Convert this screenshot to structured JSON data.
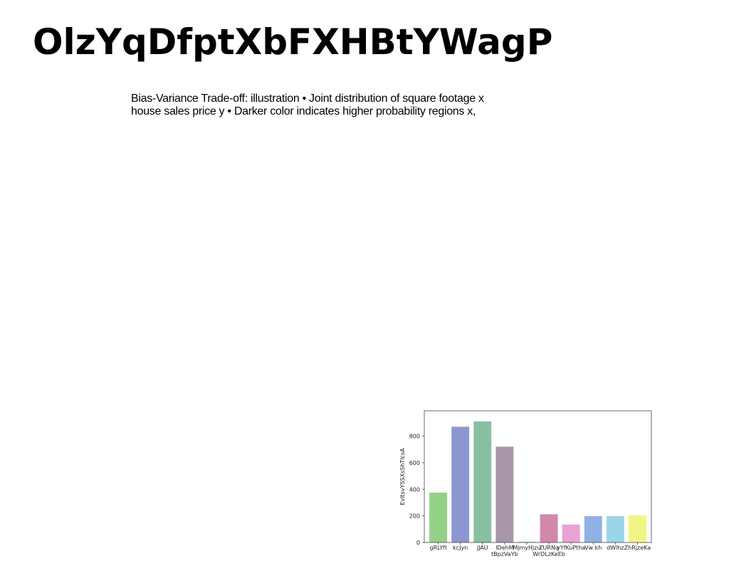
{
  "page": {
    "title": "OlzYqDfptXbFXHBtYWagP",
    "body_lines": [
      "Bias-Variance Trade-off: illustration • Joint distribution of square footage x",
      "house sales price y • Darker color indicates higher probability regions x,"
    ]
  },
  "chart_data": {
    "type": "bar",
    "categories": [
      "gRLYfI",
      "kcJyn",
      "jJAU",
      "lDehM\ntBpzVaYb",
      "MjmyHjzu",
      "ZURNq\nWrDLzKeEb",
      "yYfKuPtha",
      "Vw kh",
      "dWlhz",
      "ZhRjzeKa"
    ],
    "values": [
      375,
      870,
      910,
      720,
      8,
      212,
      135,
      198,
      198,
      203
    ],
    "colors": [
      "#93d187",
      "#8c96d0",
      "#88c0a2",
      "#a896a8",
      "#b8e8b0",
      "#d287ad",
      "#e8a2d6",
      "#8fb1e6",
      "#9ad6ea",
      "#f0f584"
    ],
    "ylabel": "EvltsvYSSXsShTlcsA",
    "xlabel": "",
    "ylim": [
      0,
      990
    ],
    "yticks": [
      0,
      200,
      400,
      600,
      800
    ],
    "grid": false
  }
}
